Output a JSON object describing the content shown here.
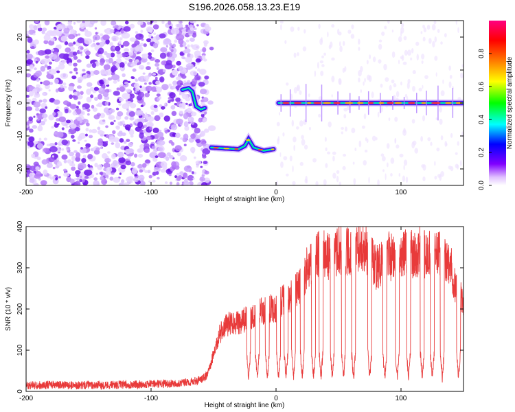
{
  "figure": {
    "title": "S196.2026.058.13.23.E19"
  },
  "chart_data": [
    {
      "type": "heatmap",
      "xlabel": "Height of straight line (km)",
      "ylabel": "Frequency (Hz)",
      "xlim": [
        -200,
        150
      ],
      "ylim": [
        -25,
        25
      ],
      "xticks": [
        -200,
        -100,
        0,
        100
      ],
      "yticks": [
        -20,
        -10,
        0,
        10,
        20
      ],
      "grid": false,
      "colorbar": {
        "label": "Normalized spectral amplitude",
        "range": [
          0,
          1
        ],
        "ticks": [
          0.0,
          0.2,
          0.4,
          0.6,
          0.8
        ],
        "colormap": [
          "#ffffff",
          "#8000ff",
          "#0000ff",
          "#00ffff",
          "#00ff00",
          "#ffff00",
          "#ff8000",
          "#ff0000",
          "#ff0080"
        ]
      },
      "ridge": [
        {
          "x": -75,
          "y": 4
        },
        {
          "x": -70,
          "y": 4.5
        },
        {
          "x": -67,
          "y": 3.5
        },
        {
          "x": -64,
          "y": -1
        },
        {
          "x": -60,
          "y": -2
        },
        {
          "x": -57,
          "y": -1.5
        },
        {
          "x": -52,
          "y": -13.5
        },
        {
          "x": -40,
          "y": -13.8
        },
        {
          "x": -30,
          "y": -14
        },
        {
          "x": -25,
          "y": -13
        },
        {
          "x": -22,
          "y": -11
        },
        {
          "x": -18,
          "y": -13.5
        },
        {
          "x": -10,
          "y": -14.5
        },
        {
          "x": -2,
          "y": -14
        },
        {
          "x": 2,
          "y": 0
        },
        {
          "x": 150,
          "y": 0
        }
      ],
      "noise_region": [
        -200,
        -55
      ]
    },
    {
      "type": "line",
      "xlabel": "Height of straight line (km)",
      "ylabel": "SNR (10 * v/v)",
      "xlim": [
        -200,
        150
      ],
      "ylim": [
        0,
        400
      ],
      "xticks": [
        -200,
        -100,
        0,
        100
      ],
      "yticks": [
        0,
        100,
        200,
        300,
        400
      ],
      "grid": false,
      "line_color": "#e83a3a",
      "series": [
        {
          "x": [
            -200,
            -190,
            -180,
            -170,
            -160,
            -150,
            -140,
            -130,
            -120,
            -110,
            -100,
            -90,
            -80,
            -70,
            -60,
            -55,
            -50,
            -45,
            -40,
            -35,
            -30,
            -25,
            -20,
            -15,
            -10,
            -5,
            0,
            5,
            10,
            15,
            20,
            25,
            30,
            35,
            40,
            45,
            50,
            55,
            60,
            65,
            70,
            75,
            80,
            85,
            90,
            95,
            100,
            105,
            110,
            115,
            120,
            125,
            130,
            135,
            140,
            145,
            150
          ],
          "values": [
            15,
            15,
            16,
            15,
            15,
            16,
            15,
            16,
            16,
            17,
            18,
            18,
            20,
            22,
            28,
            40,
            90,
            140,
            160,
            170,
            165,
            175,
            180,
            190,
            195,
            200,
            200,
            220,
            230,
            240,
            260,
            300,
            320,
            340,
            330,
            320,
            340,
            345,
            330,
            350,
            350,
            330,
            300,
            310,
            330,
            320,
            330,
            340,
            330,
            340,
            330,
            340,
            340,
            320,
            300,
            240,
            220
          ],
          "dips": [
            -22,
            -15,
            -7,
            2,
            8,
            14,
            21,
            30,
            36,
            45,
            54,
            62,
            75,
            87,
            97,
            106,
            117,
            125,
            133,
            146
          ]
        }
      ]
    }
  ]
}
